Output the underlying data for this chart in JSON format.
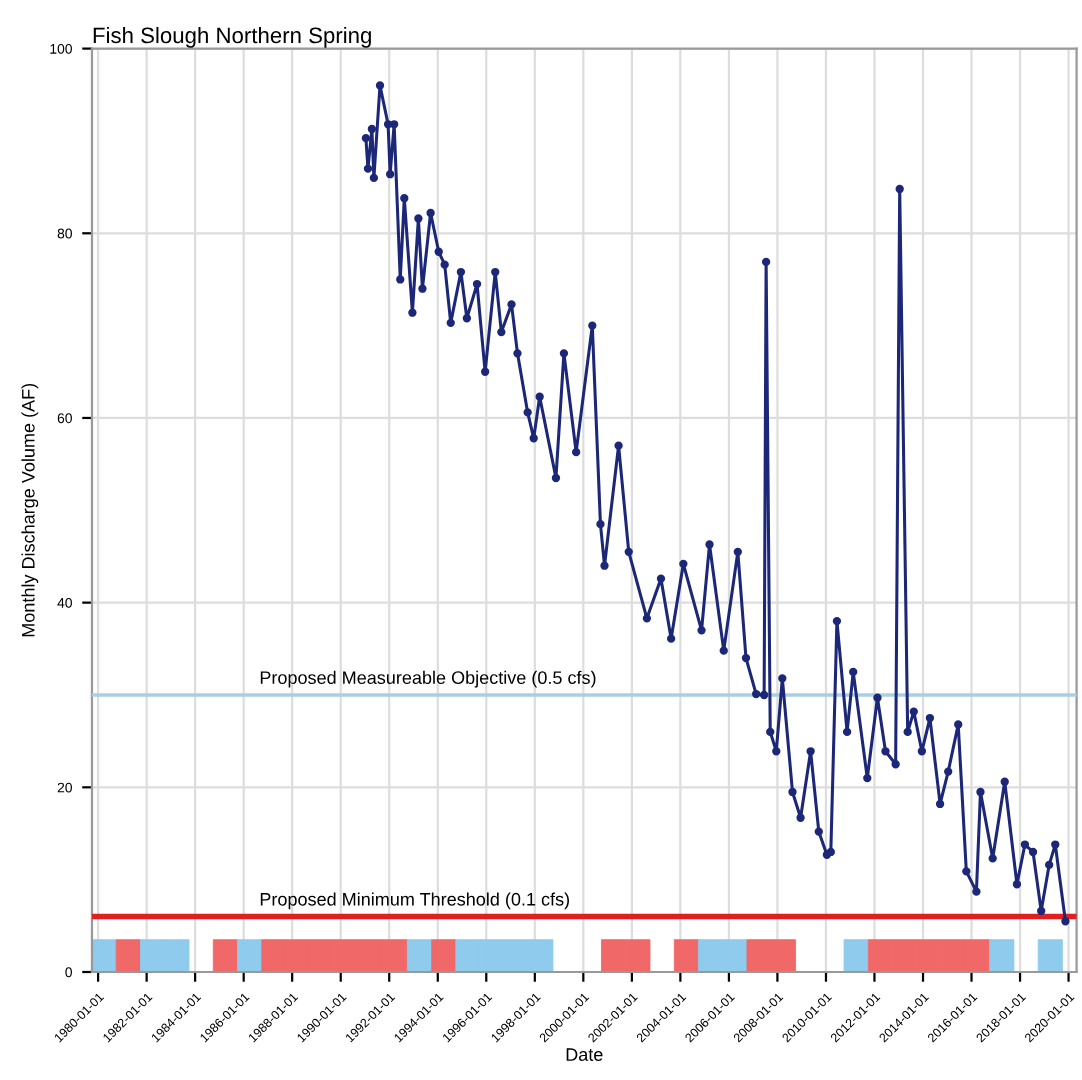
{
  "chart_data": {
    "type": "line",
    "title": "Fish Slough Northern Spring",
    "xlabel": "Date",
    "ylabel": "Monthly Discharge Volume (AF)",
    "xlim": [
      "1979-10-01",
      "2020-05-01"
    ],
    "ylim": [
      0,
      100
    ],
    "yticks": [
      0,
      20,
      40,
      60,
      80,
      100
    ],
    "xticks": [
      {
        "value": "1980-01-01",
        "label": "1980-01-01"
      },
      {
        "value": "1982-01-01",
        "label": "1982-01-01"
      },
      {
        "value": "1984-01-01",
        "label": "1984-01-01"
      },
      {
        "value": "1986-01-01",
        "label": "1986-01-01"
      },
      {
        "value": "1988-01-01",
        "label": "1988-01-01"
      },
      {
        "value": "1990-01-01",
        "label": "1990-01-01"
      },
      {
        "value": "1992-01-01",
        "label": "1992-01-01"
      },
      {
        "value": "1994-01-01",
        "label": "1994-01-01"
      },
      {
        "value": "1996-01-01",
        "label": "1996-01-01"
      },
      {
        "value": "1998-01-01",
        "label": "1998-01-01"
      },
      {
        "value": "2000-01-01",
        "label": "2000-01-01"
      },
      {
        "value": "2002-01-01",
        "label": "2002-01-01"
      },
      {
        "value": "2004-01-01",
        "label": "2004-01-01"
      },
      {
        "value": "2006-01-01",
        "label": "2006-01-01"
      },
      {
        "value": "2008-01-01",
        "label": "2008-01-01"
      },
      {
        "value": "2010-01-01",
        "label": "2010-01-01"
      },
      {
        "value": "2012-01-01",
        "label": "2012-01-01"
      },
      {
        "value": "2014-01-01",
        "label": "2014-01-01"
      },
      {
        "value": "2016-01-01",
        "label": "2016-01-01"
      },
      {
        "value": "2018-01-01",
        "label": "2018-01-01"
      },
      {
        "value": "2020-01-01",
        "label": "2020-01-01"
      }
    ],
    "grid": true,
    "legend": false,
    "marker": "circle",
    "line_style": "solid",
    "ref_lines": [
      {
        "axis": "y",
        "value": 30,
        "label": "Proposed Measureable Objective (0.5 cfs)",
        "color": "#a9cfe6",
        "line_style": "solid"
      },
      {
        "axis": "y",
        "value": 6,
        "label": "Proposed Minimum Threshold (0.1 cfs)",
        "color": "#e02020",
        "line_style": "solid"
      }
    ],
    "series": [
      {
        "type": "bar",
        "x": [
          "1980-04-01",
          "1981-04-01",
          "1982-04-01",
          "1983-04-01",
          "1984-04-01",
          "1985-04-01",
          "1986-04-01",
          "1987-04-01",
          "1988-04-01",
          "1989-04-01",
          "1990-04-01",
          "1991-04-01",
          "1992-04-01",
          "1993-04-01",
          "1994-04-01",
          "1995-04-01",
          "1996-04-01",
          "1997-04-01",
          "1998-04-01",
          "1999-04-01",
          "2000-04-01",
          "2001-04-01",
          "2002-04-01",
          "2003-04-01",
          "2004-04-01",
          "2005-04-01",
          "2006-04-01",
          "2007-04-01",
          "2008-04-01",
          "2009-04-01",
          "2010-04-01",
          "2011-04-01",
          "2012-04-01",
          "2013-04-01",
          "2014-04-01",
          "2015-04-01",
          "2016-04-01",
          "2017-04-01",
          "2018-04-01",
          "2019-04-01"
        ],
        "values": [
          3.5,
          3.5,
          3.5,
          3.5,
          null,
          3.5,
          3.5,
          3.5,
          3.5,
          3.5,
          3.5,
          3.5,
          3.5,
          3.5,
          3.5,
          3.5,
          3.5,
          3.5,
          3.5,
          null,
          null,
          3.5,
          3.5,
          null,
          3.5,
          3.5,
          3.5,
          3.5,
          3.5,
          null,
          null,
          3.5,
          3.5,
          3.5,
          3.5,
          3.5,
          3.5,
          3.5,
          null,
          3.5
        ],
        "colors": [
          "#8ecbec",
          "#f06868",
          "#8ecbec",
          "#8ecbec",
          null,
          "#f06868",
          "#8ecbec",
          "#f06868",
          "#f06868",
          "#f06868",
          "#f06868",
          "#f06868",
          "#f06868",
          "#8ecbec",
          "#f06868",
          "#8ecbec",
          "#8ecbec",
          "#8ecbec",
          "#8ecbec",
          null,
          null,
          "#f06868",
          "#f06868",
          null,
          "#f06868",
          "#8ecbec",
          "#8ecbec",
          "#f06868",
          "#f06868",
          null,
          null,
          "#8ecbec",
          "#f06868",
          "#f06868",
          "#f06868",
          "#f06868",
          "#f06868",
          "#8ecbec",
          null,
          "#8ecbec"
        ]
      },
      {
        "color": "#1c2877",
        "x": [
          "1991-01",
          "1991-02",
          "1991-04",
          "1991-05",
          "1991-08",
          "1991-12",
          "1992-01",
          "1992-03",
          "1992-06",
          "1992-08",
          "1992-12",
          "1993-03",
          "1993-05",
          "1993-09",
          "1994-01",
          "1994-04",
          "1994-07",
          "1994-12",
          "1995-03",
          "1995-08",
          "1995-12",
          "1996-05",
          "1996-08",
          "1997-01",
          "1997-04",
          "1997-09",
          "1997-12",
          "1998-03",
          "1998-11",
          "1999-03",
          "1999-09",
          "2000-05",
          "2000-09",
          "2000-11",
          "2001-06",
          "2001-11",
          "2002-08",
          "2003-03",
          "2003-08",
          "2004-02",
          "2004-11",
          "2005-03",
          "2005-10",
          "2006-05",
          "2006-09",
          "2007-02",
          "2007-06",
          "2007-07",
          "2007-09",
          "2007-12",
          "2008-03",
          "2008-08",
          "2008-12",
          "2009-05",
          "2009-09",
          "2010-01",
          "2010-03",
          "2010-06",
          "2010-11",
          "2011-02",
          "2011-09",
          "2012-02",
          "2012-06",
          "2012-11",
          "2013-01",
          "2013-05",
          "2013-08",
          "2013-12",
          "2014-04",
          "2014-09",
          "2015-01",
          "2015-06",
          "2015-10",
          "2016-03",
          "2016-05",
          "2016-11",
          "2017-05",
          "2017-11",
          "2018-03",
          "2018-07",
          "2018-11",
          "2019-03",
          "2019-06",
          "2019-11"
        ],
        "values": [
          90.3,
          87,
          91.3,
          86,
          96,
          91.8,
          86.4,
          91.8,
          75,
          83.8,
          71.4,
          81.6,
          74,
          82.2,
          78,
          76.6,
          70.3,
          75.8,
          70.8,
          74.5,
          65,
          75.8,
          69.3,
          72.3,
          67,
          60.6,
          57.8,
          62.3,
          53.5,
          67,
          56.3,
          70,
          48.5,
          44,
          57,
          45.5,
          38.3,
          42.6,
          36.1,
          44.2,
          37,
          46.3,
          34.8,
          45.5,
          34,
          30.1,
          30,
          76.9,
          26,
          23.9,
          31.8,
          19.5,
          16.7,
          23.9,
          15.2,
          12.7,
          13,
          38,
          26,
          32.5,
          21,
          29.7,
          23.9,
          22.5,
          84.8,
          26,
          28.2,
          23.9,
          27.5,
          18.2,
          21.7,
          26.8,
          10.9,
          8.7,
          19.5,
          12.3,
          20.6,
          9.5,
          13.8,
          13,
          6.6,
          11.6,
          13.8,
          5.5
        ]
      }
    ]
  }
}
